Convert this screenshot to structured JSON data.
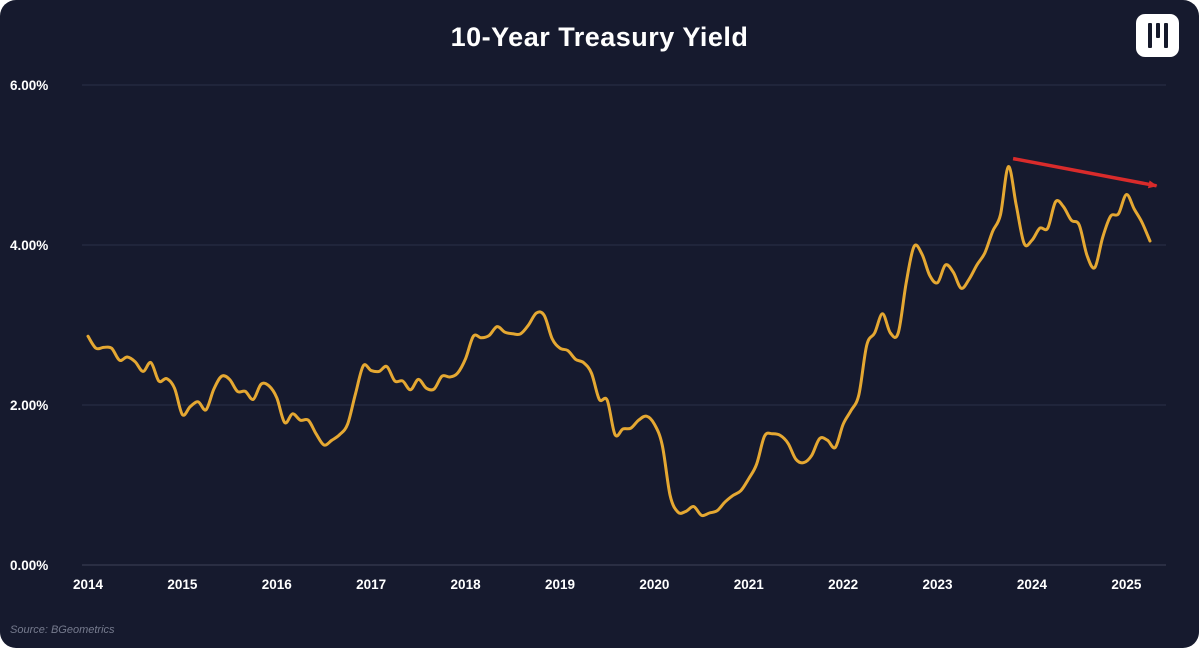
{
  "header": {
    "title": "10-Year Treasury Yield"
  },
  "footer": {
    "source": "Source: BGeometrics"
  },
  "logo": {
    "name": "bgeometrics-logo"
  },
  "colors": {
    "background": "#161a2e",
    "line": "#e5a832",
    "arrow": "#d92b2b",
    "grid": "#2a3048",
    "axis": "#3d4358",
    "text": "#ffffff",
    "muted": "#767b8e"
  },
  "chart_data": {
    "type": "line",
    "title": "10-Year Treasury Yield",
    "series_name": "10-Year Treasury Yield",
    "x_start_year": 2014,
    "points_per_year": 12,
    "frequency": "monthly",
    "x_range_note": "Jan 2014 through Apr 2025",
    "values": [
      2.86,
      2.71,
      2.72,
      2.71,
      2.56,
      2.6,
      2.54,
      2.42,
      2.53,
      2.3,
      2.33,
      2.21,
      1.88,
      1.98,
      2.04,
      1.94,
      2.2,
      2.36,
      2.32,
      2.17,
      2.17,
      2.07,
      2.26,
      2.24,
      2.09,
      1.78,
      1.89,
      1.81,
      1.81,
      1.64,
      1.5,
      1.56,
      1.63,
      1.76,
      2.14,
      2.49,
      2.43,
      2.42,
      2.48,
      2.3,
      2.3,
      2.19,
      2.32,
      2.21,
      2.2,
      2.36,
      2.35,
      2.4,
      2.58,
      2.86,
      2.84,
      2.87,
      2.98,
      2.91,
      2.89,
      2.89,
      3.0,
      3.15,
      3.12,
      2.83,
      2.71,
      2.68,
      2.57,
      2.53,
      2.4,
      2.07,
      2.06,
      1.63,
      1.7,
      1.71,
      1.81,
      1.86,
      1.76,
      1.5,
      0.87,
      0.66,
      0.67,
      0.73,
      0.62,
      0.65,
      0.68,
      0.79,
      0.87,
      0.93,
      1.08,
      1.26,
      1.61,
      1.64,
      1.62,
      1.52,
      1.32,
      1.28,
      1.37,
      1.58,
      1.56,
      1.47,
      1.76,
      1.93,
      2.13,
      2.75,
      2.9,
      3.14,
      2.9,
      2.9,
      3.52,
      3.98,
      3.89,
      3.62,
      3.53,
      3.75,
      3.66,
      3.46,
      3.57,
      3.75,
      3.9,
      4.17,
      4.38,
      4.98,
      4.5,
      4.02,
      4.06,
      4.21,
      4.21,
      4.54,
      4.48,
      4.31,
      4.25,
      3.87,
      3.72,
      4.1,
      4.36,
      4.39,
      4.63,
      4.45,
      4.28,
      4.05
    ],
    "ylim": [
      0,
      6
    ],
    "xlim": [
      2014,
      2025.42
    ],
    "grid": "horizontal",
    "legend": "none",
    "yticks": [
      {
        "value": 0,
        "label": "0.00%"
      },
      {
        "value": 2,
        "label": "2.00%"
      },
      {
        "value": 4,
        "label": "4.00%"
      },
      {
        "value": 6,
        "label": "6.00%"
      }
    ],
    "xticks": [
      {
        "value": 2014,
        "label": "2014"
      },
      {
        "value": 2015,
        "label": "2015"
      },
      {
        "value": 2016,
        "label": "2016"
      },
      {
        "value": 2017,
        "label": "2017"
      },
      {
        "value": 2018,
        "label": "2018"
      },
      {
        "value": 2019,
        "label": "2019"
      },
      {
        "value": 2020,
        "label": "2020"
      },
      {
        "value": 2021,
        "label": "2021"
      },
      {
        "value": 2022,
        "label": "2022"
      },
      {
        "value": 2023,
        "label": "2023"
      },
      {
        "value": 2024,
        "label": "2024"
      },
      {
        "value": 2025,
        "label": "2025"
      }
    ],
    "annotation_arrow": {
      "x_from": 2023.8,
      "y_from": 5.08,
      "x_to": 2025.32,
      "y_to": 4.74,
      "color": "#d92b2b"
    }
  }
}
